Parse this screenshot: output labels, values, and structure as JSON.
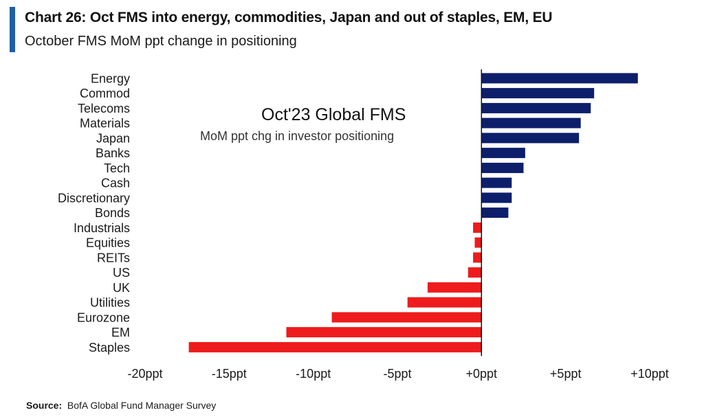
{
  "header": {
    "title": "Chart 26: Oct FMS into energy, commodities, Japan and out of staples, EM, EU",
    "subtitle": "October FMS MoM ppt change in positioning"
  },
  "chart_data": {
    "type": "bar",
    "orientation": "horizontal",
    "categories": [
      "Energy",
      "Commod",
      "Telecoms",
      "Materials",
      "Japan",
      "Banks",
      "Tech",
      "Cash",
      "Discretionary",
      "Bonds",
      "Industrials",
      "Equities",
      "REITs",
      "US",
      "UK",
      "Utilities",
      "Eurozone",
      "EM",
      "Staples"
    ],
    "values": [
      9.3,
      6.7,
      6.5,
      5.9,
      5.8,
      2.6,
      2.5,
      1.8,
      1.8,
      1.6,
      -0.5,
      -0.4,
      -0.5,
      -0.8,
      -3.2,
      -4.4,
      -8.9,
      -11.6,
      -17.4
    ],
    "xlim": [
      -20,
      10
    ],
    "xticks": [
      -20,
      -15,
      -10,
      -5,
      0,
      5,
      10
    ],
    "xtick_labels": [
      "-20ppt",
      "-15ppt",
      "-10ppt",
      "-5ppt",
      "+0ppt",
      "+5ppt",
      "+10ppt"
    ],
    "annotation": {
      "title": "Oct'23 Global FMS",
      "subtitle": "MoM ppt chg in investor positioning"
    },
    "colors": {
      "positive": "#0d1f6b",
      "negative": "#ee1c1c",
      "axis": "#111111"
    },
    "grid": false,
    "legend": "none"
  },
  "footer": {
    "source_label": "Source:",
    "source_text": "BofA Global Fund Manager Survey"
  }
}
